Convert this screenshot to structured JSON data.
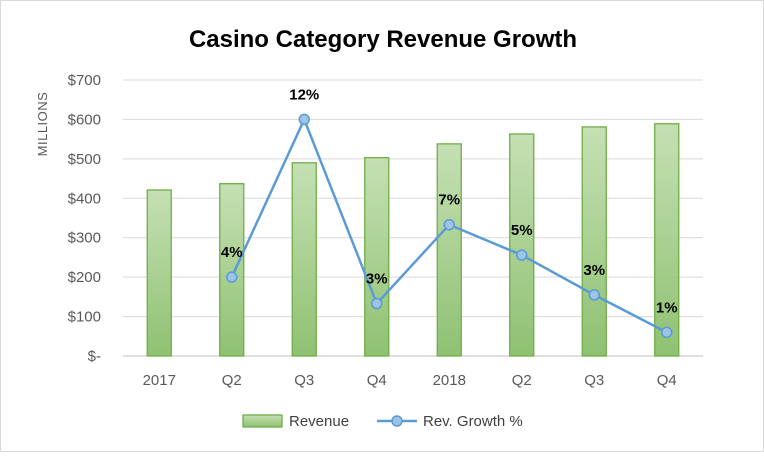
{
  "chart_data": {
    "type": "bar",
    "title": "Casino Category Revenue Growth",
    "ylabel": "MILLIONS",
    "categories": [
      "2017",
      "Q2",
      "Q3",
      "Q4",
      "2018",
      "Q2",
      "Q3",
      "Q4"
    ],
    "ylim": [
      0,
      700
    ],
    "yticks": [
      {
        "value": 0,
        "label": "$-"
      },
      {
        "value": 100,
        "label": "$100"
      },
      {
        "value": 200,
        "label": "$200"
      },
      {
        "value": 300,
        "label": "$300"
      },
      {
        "value": 400,
        "label": "$400"
      },
      {
        "value": 500,
        "label": "$500"
      },
      {
        "value": 600,
        "label": "$600"
      },
      {
        "value": 700,
        "label": "$700"
      }
    ],
    "grid": true,
    "legend_position": "bottom",
    "series": [
      {
        "name": "Revenue",
        "type": "bar",
        "color": "#a9d18e",
        "values": [
          421,
          437,
          490,
          503,
          538,
          563,
          581,
          589
        ]
      },
      {
        "name": "Rev. Growth %",
        "type": "line",
        "color": "#5b9bd5",
        "marker_fill": "#9dc3e6",
        "x_indices": [
          1,
          2,
          3,
          4,
          5,
          6,
          7
        ],
        "plot_values": [
          200,
          600,
          133,
          333,
          256,
          155,
          60
        ],
        "labels": [
          "4%",
          "12%",
          "3%",
          "7%",
          "5%",
          "3%",
          "1%"
        ]
      }
    ]
  }
}
